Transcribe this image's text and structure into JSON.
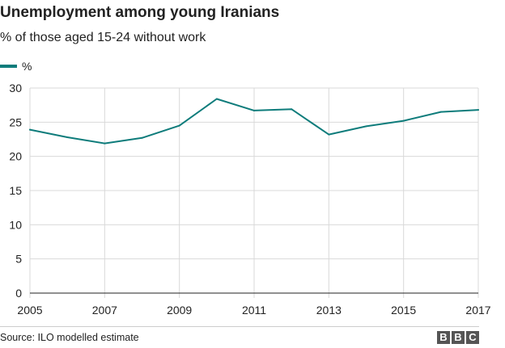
{
  "title": "Unemployment among young Iranians",
  "subtitle": "% of those aged 15-24 without work",
  "source": "Source: ILO modelled estimate",
  "logo": [
    "B",
    "B",
    "C"
  ],
  "colors": {
    "line": "#0e7c7b",
    "grid": "#d9d9d9",
    "axis": "#222222",
    "logo_bg": "#555555"
  },
  "chart_data": {
    "type": "line",
    "title": "Unemployment among young Iranians",
    "subtitle": "% of those aged 15-24 without work",
    "xlabel": "",
    "ylabel": "",
    "x": [
      2005,
      2006,
      2007,
      2008,
      2009,
      2010,
      2011,
      2012,
      2013,
      2014,
      2015,
      2016,
      2017
    ],
    "series": [
      {
        "name": "%",
        "values": [
          23.9,
          22.8,
          21.9,
          22.7,
          24.5,
          28.4,
          26.7,
          26.9,
          23.2,
          24.4,
          25.2,
          26.5,
          26.8
        ]
      }
    ],
    "xticks": [
      2005,
      2007,
      2009,
      2011,
      2013,
      2015,
      2017
    ],
    "yticks": [
      0,
      5,
      10,
      15,
      20,
      25,
      30
    ],
    "xlim": [
      2005,
      2017
    ],
    "ylim": [
      0,
      30
    ],
    "grid": true,
    "legend": "top-left"
  }
}
